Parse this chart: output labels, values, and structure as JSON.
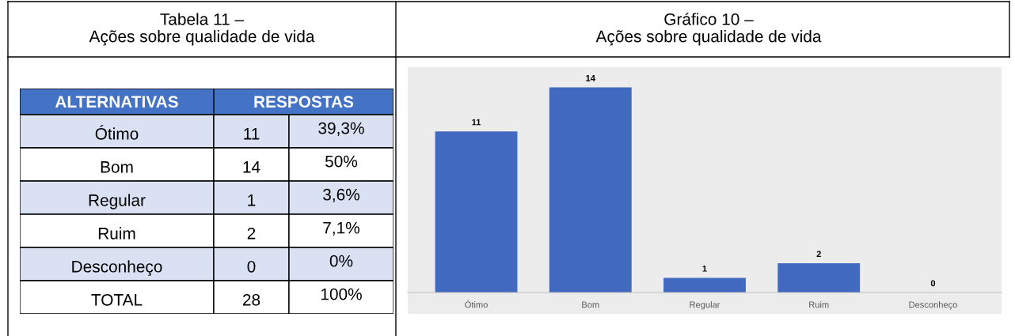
{
  "chart_data": [
    {
      "type": "other",
      "title": "Tabela 11 –\nAções sobre qualidade de vida",
      "annotations": [
        "ALTERNATIVAS",
        "RESPOSTAS",
        "Ótimo",
        "11",
        "39,3%",
        "Bom",
        "14",
        "50%",
        "Regular",
        "1",
        "3,6%",
        "Ruim",
        "2",
        "7,1%",
        "Desconheço",
        "0",
        "0%",
        "TOTAL",
        "28",
        "100%"
      ]
    },
    {
      "type": "bar",
      "title": "Gráfico 10 –\nAções sobre qualidade de vida",
      "categories": [
        "Ótimo",
        "Bom",
        "Regular",
        "Ruim",
        "Desconheço"
      ],
      "values": [
        11,
        14,
        1,
        2,
        0
      ],
      "color": "#4169c0",
      "data_labels": true
    }
  ]
}
